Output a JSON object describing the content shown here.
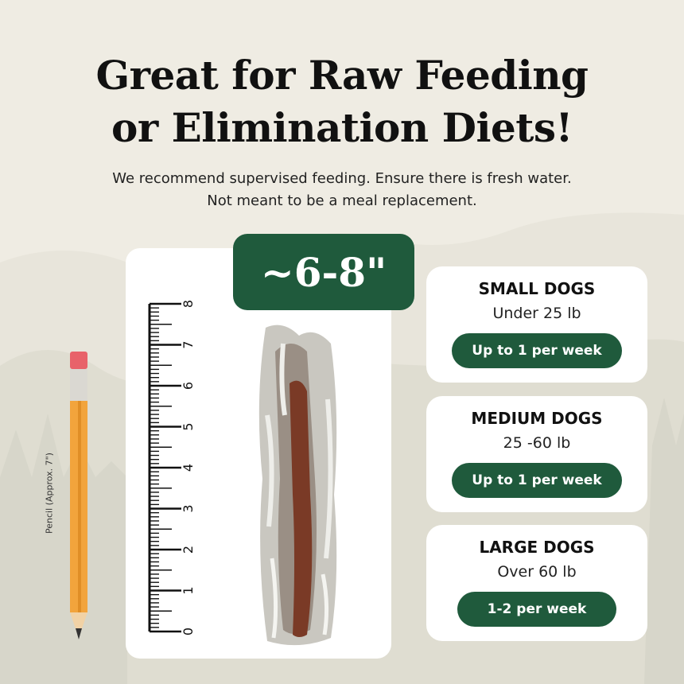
{
  "headline": {
    "line1": "Great for Raw Feeding",
    "line2": "or Elimination Diets!"
  },
  "subtitle": {
    "line1": "We recommend supervised feeding. Ensure there is fresh water.",
    "line2": "Not meant to be a meal replacement."
  },
  "size_badge": "~6-8\"",
  "ruler": {
    "labels": [
      "0",
      "1",
      "2",
      "3",
      "4",
      "5",
      "6",
      "7",
      "8"
    ]
  },
  "pencil": {
    "label": "Pencil (Approx. 7\")"
  },
  "dogs": [
    {
      "title": "SMALL DOGS",
      "weight": "Under 25 lb",
      "amount": "Up to 1 per week"
    },
    {
      "title": "MEDIUM DOGS",
      "weight": "25 -60 lb",
      "amount": "Up to 1 per week"
    },
    {
      "title": "LARGE DOGS",
      "weight": "Over 60 lb",
      "amount": "1-2 per week"
    }
  ],
  "colors": {
    "background": "#efece3",
    "brand_green": "#1f5a3c",
    "card": "#ffffff",
    "pencil_body": "#f2a43c",
    "pencil_eraser": "#e8626a"
  }
}
